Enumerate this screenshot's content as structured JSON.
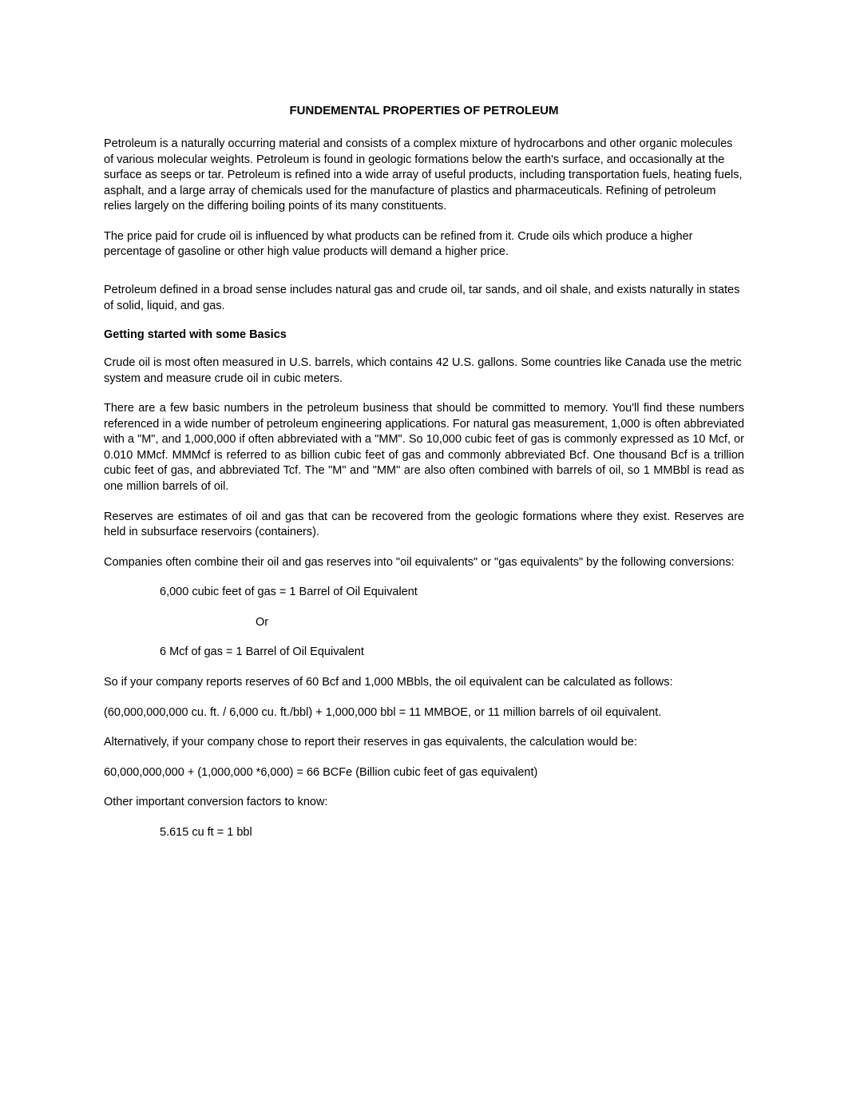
{
  "title": "FUNDEMENTAL PROPERTIES OF PETROLEUM",
  "p1": "Petroleum is a naturally occurring material and consists of a complex mixture of hydrocarbons and other organic molecules of various molecular weights.  Petroleum is found in geologic formations below the earth's surface, and occasionally at the surface as seeps or tar.  Petroleum is refined into a wide array of useful products, including transportation fuels, heating fuels, asphalt, and a large array of chemicals used for the manufacture of plastics and pharmaceuticals.  Refining of petroleum relies largely on the differing boiling points of its many constituents.",
  "p2": "The price paid for crude oil is influenced by what products can be refined from it.  Crude oils which produce a higher percentage of gasoline or other high value products will demand a higher price.",
  "p3": "Petroleum defined in a broad sense includes natural gas and crude oil, tar sands, and oil shale, and exists naturally in states of solid, liquid, and gas.",
  "h1": "Getting started with some Basics",
  "p4": "Crude oil is most often measured in U.S. barrels, which contains 42 U.S. gallons.  Some countries like Canada use the metric system and measure crude oil in cubic meters.",
  "p5": "There are a few basic numbers in the petroleum business that should be committed to memory.  You'll find these numbers referenced in a wide number of petroleum engineering applications.  For natural gas measurement, 1,000 is often abbreviated with a \"M\", and 1,000,000 if often abbreviated with a \"MM\".  So 10,000 cubic feet of gas is commonly expressed as 10 Mcf, or 0.010 MMcf. MMMcf is referred to as billion cubic feet of gas and commonly abbreviated Bcf.  One thousand Bcf is a trillion cubic feet of gas, and abbreviated Tcf.   The \"M\" and \"MM\" are also often combined with barrels of oil, so 1 MMBbl is read as one million barrels of oil.",
  "p6": "Reserves are estimates of oil and gas that can be recovered from the geologic formations where they exist.  Reserves are held in subsurface reservoirs (containers).",
  "p7": "Companies often combine their oil and gas reserves into \"oil equivalents\" or \"gas equivalents\" by the following conversions:",
  "conv1": "6,000 cubic feet of gas = 1 Barrel of Oil Equivalent",
  "or": "Or",
  "conv2": "6 Mcf of gas = 1 Barrel of Oil Equivalent",
  "p8": "So if your company reports reserves of 60 Bcf and 1,000 MBbls, the oil equivalent can be calculated as follows:",
  "p9": "(60,000,000,000 cu. ft. / 6,000 cu. ft./bbl) + 1,000,000  bbl = 11 MMBOE, or 11 million barrels of oil equivalent.",
  "p10": "Alternatively, if your company chose to report their reserves in gas equivalents, the calculation would be:",
  "p11": "60,000,000,000 + (1,000,000 *6,000) = 66 BCFe (Billion cubic feet of gas equivalent)",
  "p12": "Other important conversion factors to know:",
  "conv3": "5.615 cu ft = 1 bbl"
}
